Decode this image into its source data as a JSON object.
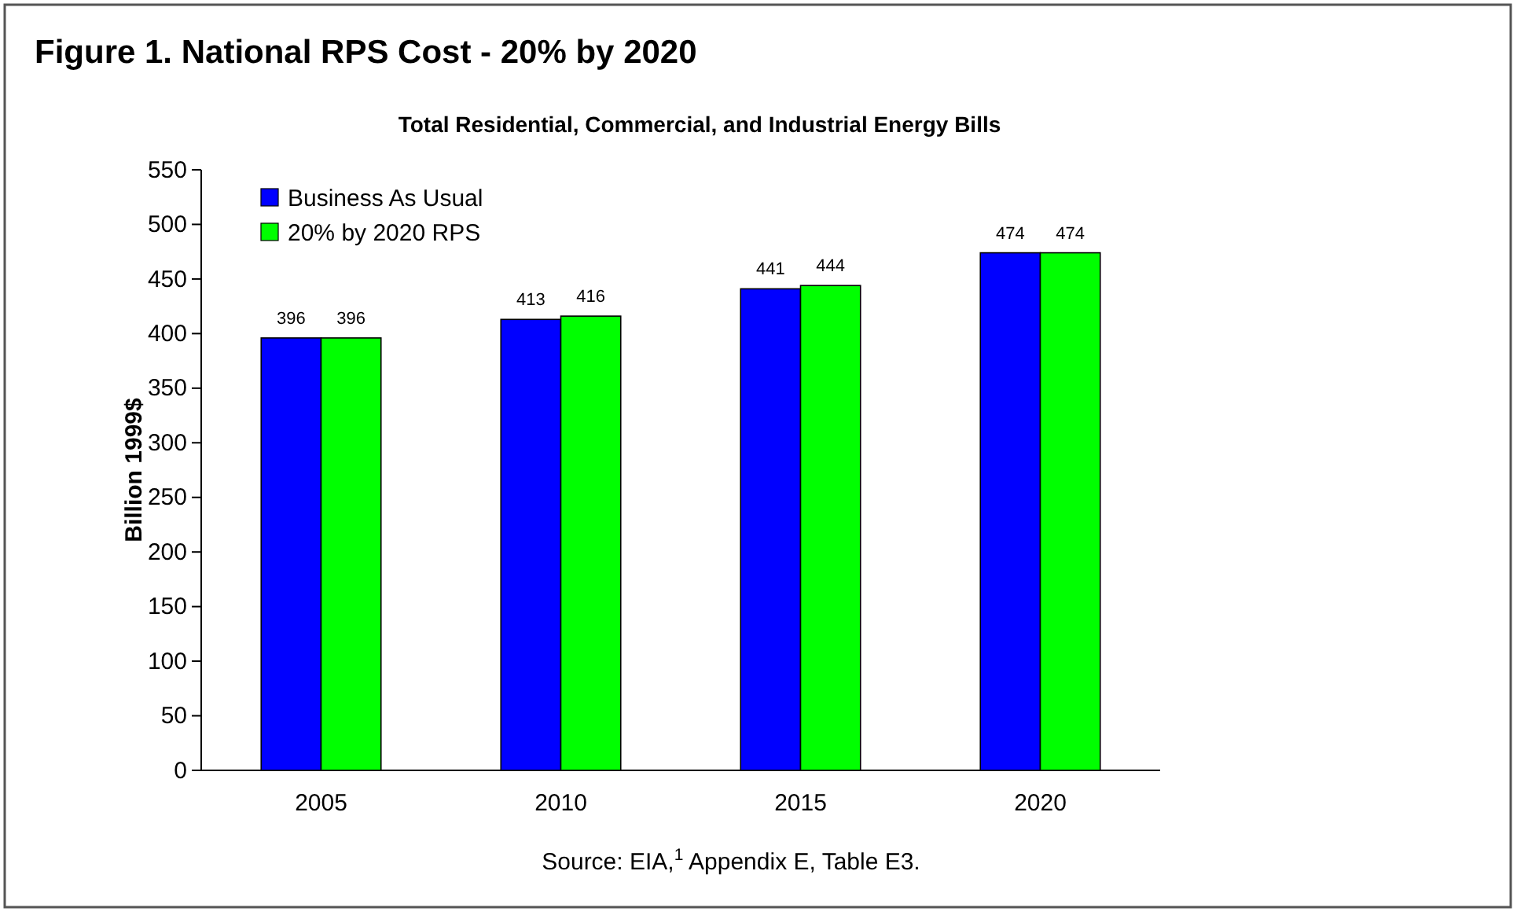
{
  "chart_data": {
    "type": "bar",
    "title": "Figure 1.  National RPS Cost - 20% by 2020",
    "subtitle": "Total Residential, Commercial, and Industrial Energy Bills",
    "ylabel": "Billion 1999$",
    "categories": [
      "2005",
      "2010",
      "2015",
      "2020"
    ],
    "series": [
      {
        "name": "Business As Usual",
        "color": "#0000ff",
        "values": [
          396,
          413,
          441,
          474
        ]
      },
      {
        "name": "20% by 2020 RPS",
        "color": "#00ff00",
        "values": [
          396,
          416,
          444,
          474
        ]
      }
    ],
    "ylim": [
      0,
      550
    ],
    "yticks": [
      0,
      50,
      100,
      150,
      200,
      250,
      300,
      350,
      400,
      450,
      500,
      550
    ],
    "data_labels": true,
    "grid": false,
    "legend": "top left",
    "annotations": [
      "Source: EIA,$^{1}$ Appendix E, Table E3."
    ]
  }
}
